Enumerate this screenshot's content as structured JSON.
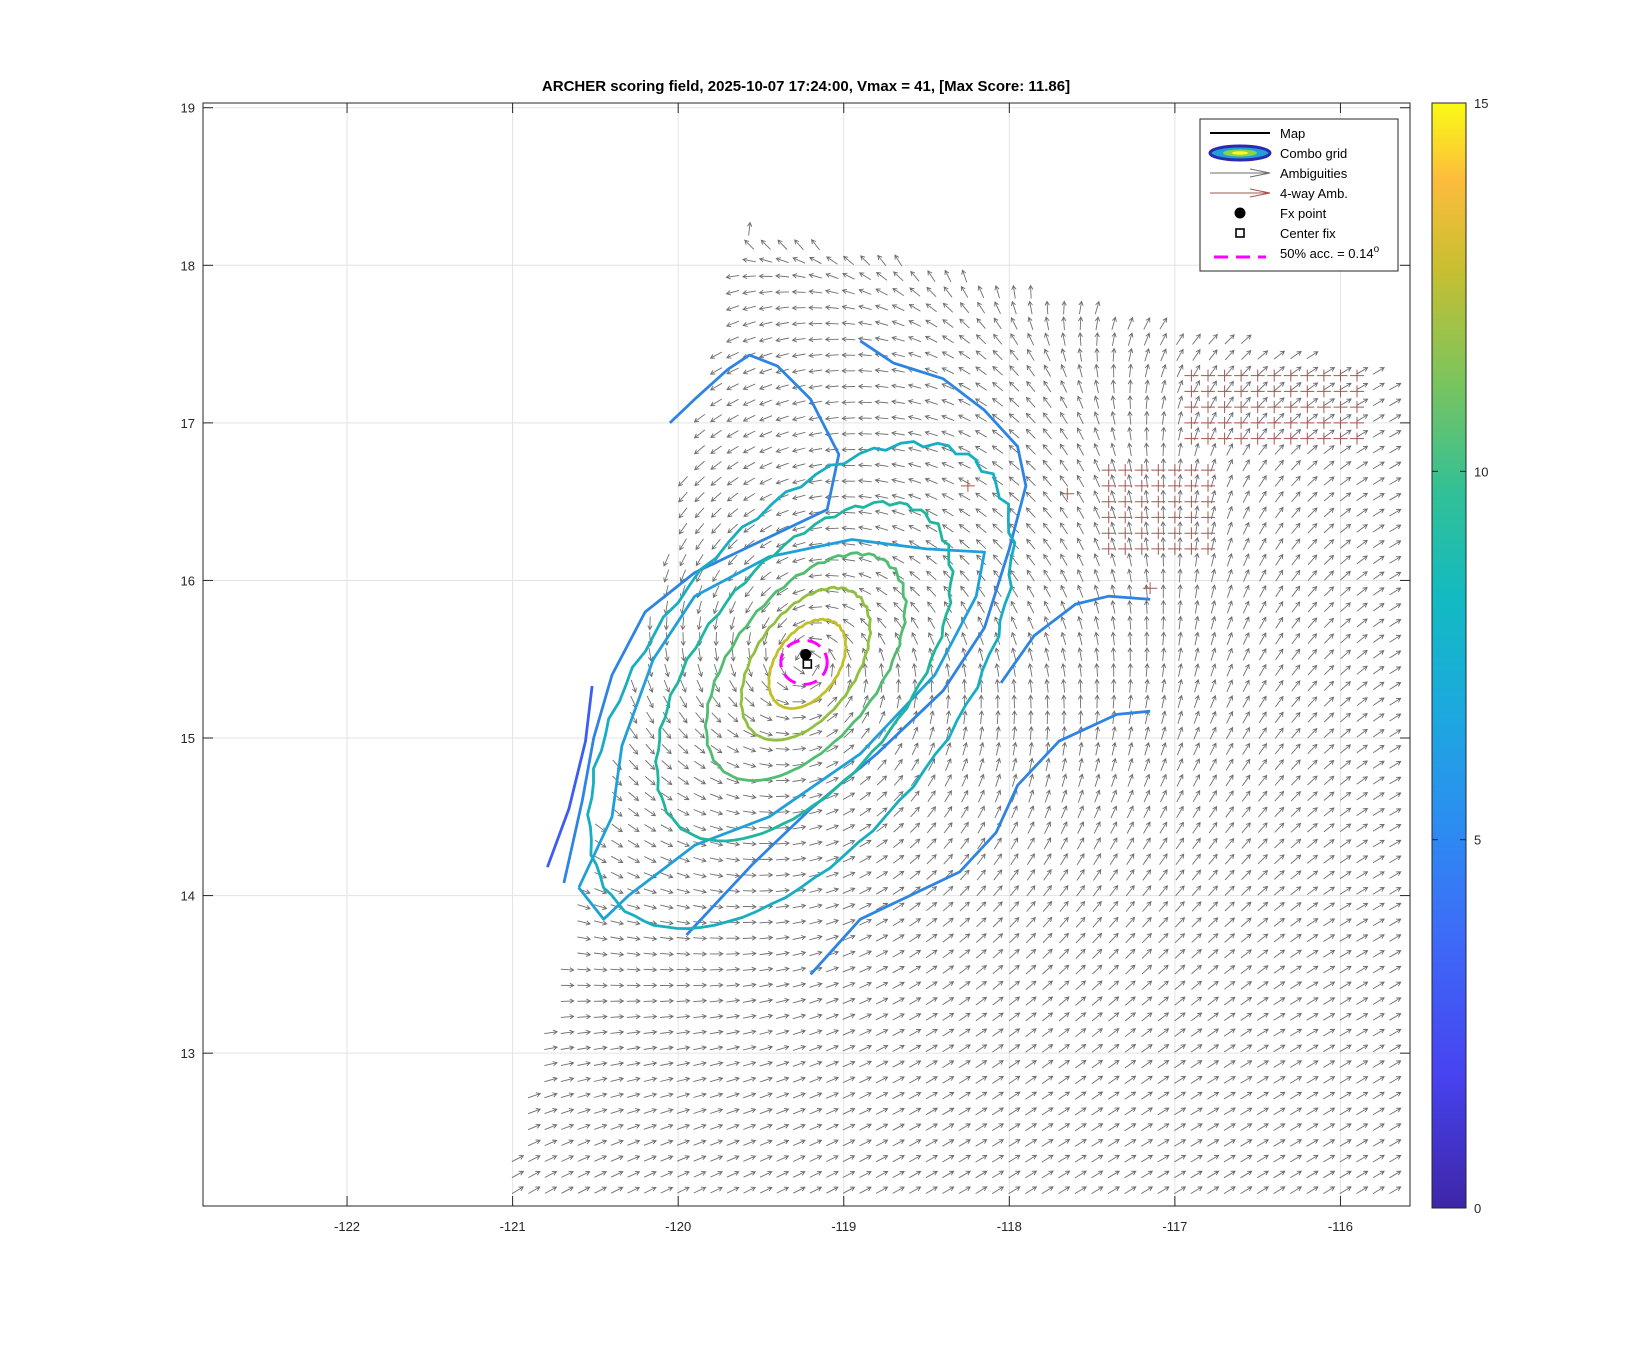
{
  "chart_data": {
    "type": "contour",
    "title": "ARCHER scoring field, 2025-10-07 17:24:00, Vmax = 41, [Max Score: 11.86]",
    "xlabel": "",
    "ylabel": "",
    "xlim": [
      -122.87,
      -115.58
    ],
    "ylim": [
      12.03,
      19.03
    ],
    "xticks": [
      -122,
      -121,
      -120,
      -119,
      -118,
      -117,
      -116
    ],
    "yticks": [
      13,
      14,
      15,
      16,
      17,
      18,
      19
    ],
    "grid": true,
    "colorbar": {
      "min": 0,
      "max": 15,
      "ticks": [
        0,
        5,
        10,
        15
      ],
      "colormap": "parula"
    },
    "legend": {
      "placement": "top-right",
      "entries": [
        {
          "key": "map",
          "label": "Map"
        },
        {
          "key": "combo",
          "label": "Combo grid"
        },
        {
          "key": "amb",
          "label": "Ambiguities"
        },
        {
          "key": "amb4",
          "label": "4-way Amb."
        },
        {
          "key": "fx",
          "label": "Fx point"
        },
        {
          "key": "center",
          "label": "Center fix"
        },
        {
          "key": "acc",
          "label": "50% acc. = 0.14",
          "sup": "o"
        }
      ]
    },
    "fx_point": {
      "lon": -119.23,
      "lat": 15.53
    },
    "center_fix": {
      "lon": -119.22,
      "lat": 15.47
    },
    "accuracy_circle": {
      "lon": -119.24,
      "lat": 15.48,
      "radius_deg": 0.14
    },
    "storm_center": {
      "lon": -119.22,
      "lat": 15.48
    },
    "contour_levels": [
      {
        "value": 3.0,
        "color": "#3d5cf0",
        "lines": [
          [
            [
              -120.52,
              15.33
            ],
            [
              -120.56,
              14.98
            ],
            [
              -120.66,
              14.55
            ],
            [
              -120.79,
              14.18
            ]
          ]
        ]
      },
      {
        "value": 4.2,
        "color": "#2e84e3",
        "lines": [
          [
            [
              -120.05,
              17.0
            ],
            [
              -119.9,
              17.15
            ],
            [
              -119.7,
              17.34
            ],
            [
              -119.57,
              17.43
            ],
            [
              -119.4,
              17.36
            ],
            [
              -119.2,
              17.15
            ],
            [
              -119.03,
              16.8
            ],
            [
              -119.1,
              16.45
            ],
            [
              -119.5,
              16.25
            ],
            [
              -119.9,
              16.05
            ],
            [
              -120.2,
              15.8
            ],
            [
              -120.4,
              15.4
            ],
            [
              -120.51,
              15.0
            ],
            [
              -120.58,
              14.6
            ],
            [
              -120.69,
              14.08
            ]
          ],
          [
            [
              -118.9,
              17.52
            ],
            [
              -118.7,
              17.38
            ],
            [
              -118.4,
              17.28
            ],
            [
              -118.15,
              17.08
            ],
            [
              -117.95,
              16.85
            ],
            [
              -117.9,
              16.6
            ],
            [
              -118.0,
              16.2
            ],
            [
              -118.15,
              15.7
            ],
            [
              -118.4,
              15.3
            ],
            [
              -118.8,
              14.9
            ],
            [
              -119.2,
              14.55
            ],
            [
              -119.55,
              14.2
            ],
            [
              -119.95,
              13.75
            ]
          ],
          [
            [
              -117.15,
              15.88
            ],
            [
              -117.4,
              15.9
            ],
            [
              -117.6,
              15.85
            ],
            [
              -117.85,
              15.65
            ],
            [
              -118.05,
              15.35
            ]
          ],
          [
            [
              -117.15,
              15.17
            ],
            [
              -117.35,
              15.15
            ],
            [
              -117.7,
              14.98
            ],
            [
              -117.95,
              14.7
            ],
            [
              -118.08,
              14.4
            ],
            [
              -118.3,
              14.15
            ],
            [
              -118.6,
              14.0
            ],
            [
              -118.9,
              13.85
            ],
            [
              -119.2,
              13.5
            ]
          ]
        ]
      },
      {
        "value": 5.2,
        "color": "#1fa0d8",
        "lines": [
          [
            [
              -120.6,
              14.05
            ],
            [
              -120.4,
              14.5
            ],
            [
              -120.34,
              14.95
            ],
            [
              -120.15,
              15.5
            ],
            [
              -119.9,
              15.9
            ],
            [
              -119.45,
              16.15
            ],
            [
              -118.95,
              16.26
            ],
            [
              -118.5,
              16.2
            ],
            [
              -118.15,
              16.18
            ],
            [
              -118.2,
              15.9
            ],
            [
              -118.45,
              15.4
            ],
            [
              -118.9,
              14.9
            ],
            [
              -119.45,
              14.5
            ],
            [
              -119.9,
              14.32
            ],
            [
              -120.05,
              14.2
            ],
            [
              -120.3,
              14.0
            ],
            [
              -120.45,
              13.85
            ],
            [
              -120.6,
              14.05
            ]
          ]
        ]
      },
      {
        "value": 6.4,
        "color": "#18aec2",
        "closed": true,
        "cx": -119.26,
        "cy": 15.33,
        "rx": 1.72,
        "ry": 0.95,
        "angle": 52
      },
      {
        "value": 7.6,
        "color": "#1eb69f",
        "closed": true,
        "cx": -119.24,
        "cy": 15.42,
        "rx": 1.2,
        "ry": 0.66,
        "angle": 52
      },
      {
        "value": 8.8,
        "color": "#50bd70",
        "closed": true,
        "cx": -119.23,
        "cy": 15.45,
        "rx": 0.8,
        "ry": 0.46,
        "angle": 52
      },
      {
        "value": 9.8,
        "color": "#90c040",
        "closed": true,
        "cx": -119.23,
        "cy": 15.47,
        "rx": 0.52,
        "ry": 0.32,
        "angle": 55
      },
      {
        "value": 10.8,
        "color": "#c2c029",
        "closed": true,
        "cx": -119.22,
        "cy": 15.47,
        "rx": 0.3,
        "ry": 0.2,
        "angle": 55
      }
    ],
    "wind_field": {
      "swath_corners": [
        [
          -121.04,
          12.03
        ],
        [
          -119.6,
          18.25
        ],
        [
          -115.58,
          17.3
        ],
        [
          -115.58,
          12.03
        ]
      ],
      "spacing_deg": 0.1,
      "vector_description": "cyclonic (counter-clockwise) circulation around storm center, merging into south-westerly flow to the south-east",
      "four_way_ambiguity_regions": [
        {
          "lon_range": [
            -117.4,
            -116.8
          ],
          "lat_range": [
            16.2,
            16.7
          ]
        },
        {
          "lon_range": [
            -116.9,
            -115.9
          ],
          "lat_range": [
            16.9,
            17.3
          ]
        },
        {
          "lon": -118.25,
          "lat": 16.6
        },
        {
          "lon": -117.65,
          "lat": 16.55
        },
        {
          "lon": -117.15,
          "lat": 15.95
        }
      ]
    }
  }
}
